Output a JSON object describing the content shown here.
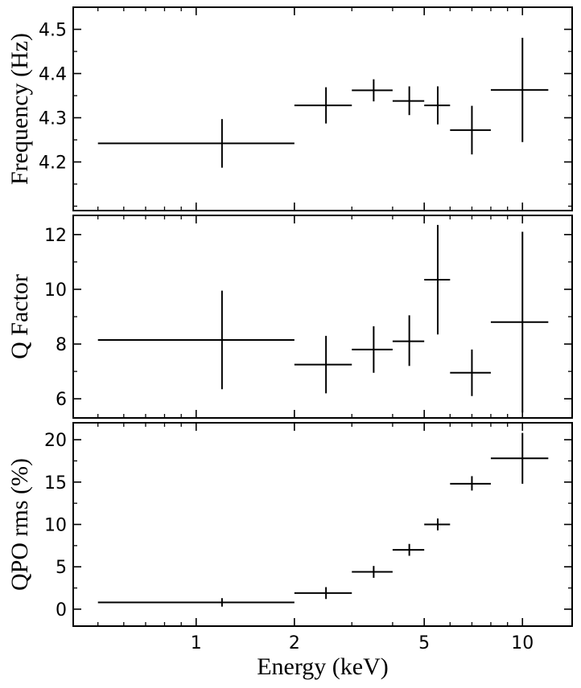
{
  "chart_data": [
    {
      "type": "scatter",
      "ylabel": "Frequency (Hz)",
      "xscale": "log",
      "xlim": [
        0.42,
        14.2
      ],
      "ylim": [
        4.09,
        4.55
      ],
      "yticks": [
        4.2,
        4.3,
        4.4,
        4.5
      ],
      "ytick_labels": [
        "4.2",
        "4.3",
        "4.4",
        "4.5"
      ],
      "points": [
        {
          "x": 1.2,
          "xlo": 0.5,
          "xhi": 2.0,
          "y": 4.242,
          "ylo": 4.187,
          "yhi": 4.297
        },
        {
          "x": 2.5,
          "xlo": 2.0,
          "xhi": 3.0,
          "y": 4.328,
          "ylo": 4.287,
          "yhi": 4.369
        },
        {
          "x": 3.5,
          "xlo": 3.0,
          "xhi": 4.0,
          "y": 4.362,
          "ylo": 4.337,
          "yhi": 4.387
        },
        {
          "x": 4.5,
          "xlo": 4.0,
          "xhi": 5.0,
          "y": 4.338,
          "ylo": 4.306,
          "yhi": 4.371
        },
        {
          "x": 5.5,
          "xlo": 5.0,
          "xhi": 6.0,
          "y": 4.328,
          "ylo": 4.285,
          "yhi": 4.371
        },
        {
          "x": 7.0,
          "xlo": 6.0,
          "xhi": 8.0,
          "y": 4.272,
          "ylo": 4.217,
          "yhi": 4.327
        },
        {
          "x": 10.0,
          "xlo": 8.0,
          "xhi": 12.0,
          "y": 4.363,
          "ylo": 4.245,
          "yhi": 4.481
        }
      ]
    },
    {
      "type": "scatter",
      "ylabel": "Q Factor",
      "xscale": "log",
      "xlim": [
        0.42,
        14.2
      ],
      "ylim": [
        5.3,
        12.7
      ],
      "yticks": [
        6,
        8,
        10,
        12
      ],
      "ytick_labels": [
        "6",
        "8",
        "10",
        "12"
      ],
      "points": [
        {
          "x": 1.2,
          "xlo": 0.5,
          "xhi": 2.0,
          "y": 8.15,
          "ylo": 6.35,
          "yhi": 9.95
        },
        {
          "x": 2.5,
          "xlo": 2.0,
          "xhi": 3.0,
          "y": 7.25,
          "ylo": 6.2,
          "yhi": 8.3
        },
        {
          "x": 3.5,
          "xlo": 3.0,
          "xhi": 4.0,
          "y": 7.8,
          "ylo": 6.95,
          "yhi": 8.65
        },
        {
          "x": 4.5,
          "xlo": 4.0,
          "xhi": 5.0,
          "y": 8.1,
          "ylo": 7.2,
          "yhi": 9.05
        },
        {
          "x": 5.5,
          "xlo": 5.0,
          "xhi": 6.0,
          "y": 10.35,
          "ylo": 8.35,
          "yhi": 12.35
        },
        {
          "x": 7.0,
          "xlo": 6.0,
          "xhi": 8.0,
          "y": 6.95,
          "ylo": 6.1,
          "yhi": 7.8
        },
        {
          "x": 10.0,
          "xlo": 8.0,
          "xhi": 12.0,
          "y": 8.8,
          "ylo": 5.5,
          "yhi": 12.1
        }
      ]
    },
    {
      "type": "scatter",
      "ylabel": "QPO rms (%)",
      "xlabel": "Energy (keV)",
      "xscale": "log",
      "xlim": [
        0.42,
        14.2
      ],
      "ylim": [
        -2.0,
        22.0
      ],
      "yticks": [
        0,
        5,
        10,
        15,
        20
      ],
      "ytick_labels": [
        "0",
        "5",
        "10",
        "15",
        "20"
      ],
      "xticks": [
        1,
        2,
        5,
        10
      ],
      "xtick_labels": [
        "1",
        "2",
        "5",
        "10"
      ],
      "points": [
        {
          "x": 1.2,
          "xlo": 0.5,
          "xhi": 2.0,
          "y": 0.8,
          "ylo": 0.3,
          "yhi": 1.3
        },
        {
          "x": 2.5,
          "xlo": 2.0,
          "xhi": 3.0,
          "y": 1.9,
          "ylo": 1.2,
          "yhi": 2.6
        },
        {
          "x": 3.5,
          "xlo": 3.0,
          "xhi": 4.0,
          "y": 4.4,
          "ylo": 3.7,
          "yhi": 5.1
        },
        {
          "x": 4.5,
          "xlo": 4.0,
          "xhi": 5.0,
          "y": 7.0,
          "ylo": 6.3,
          "yhi": 7.7
        },
        {
          "x": 5.5,
          "xlo": 5.0,
          "xhi": 6.0,
          "y": 10.0,
          "ylo": 9.3,
          "yhi": 10.7
        },
        {
          "x": 7.0,
          "xlo": 6.0,
          "xhi": 8.0,
          "y": 14.8,
          "ylo": 14.0,
          "yhi": 15.7
        },
        {
          "x": 10.0,
          "xlo": 8.0,
          "xhi": 12.0,
          "y": 17.8,
          "ylo": 14.8,
          "yhi": 20.8
        }
      ]
    }
  ]
}
